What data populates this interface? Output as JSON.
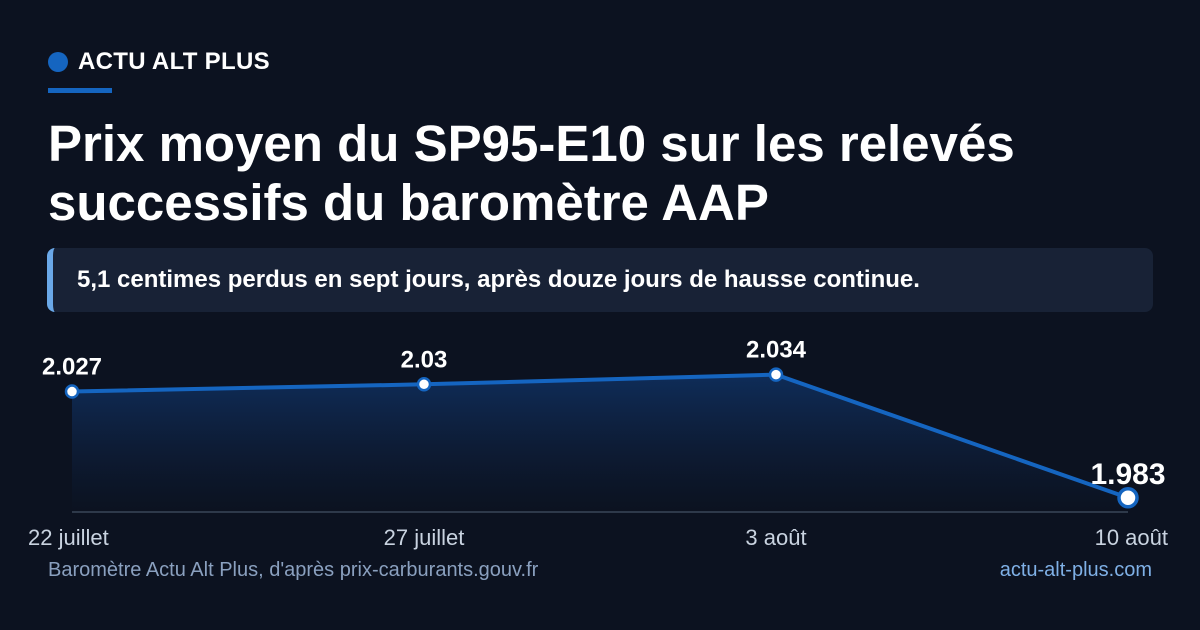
{
  "brand": {
    "name": "ACTU ALT PLUS"
  },
  "title": "Prix moyen du SP95-E10 sur les relevés successifs du baromètre AAP",
  "subtitle": "5,1 centimes perdus en sept jours, après douze jours de hausse continue.",
  "footer": {
    "source": "Baromètre Actu Alt Plus, d'après prix-carburants.gouv.fr",
    "site": "actu-alt-plus.com"
  },
  "colors": {
    "accent": "#1565c0",
    "background": "#0c1220",
    "subtitle_bar": "#6aa8e8"
  },
  "chart_data": {
    "type": "area",
    "title": "",
    "xlabel": "",
    "ylabel": "",
    "categories": [
      "22 juillet",
      "27 juillet",
      "3 août",
      "10 août"
    ],
    "values": [
      2.027,
      2.03,
      2.034,
      1.983
    ],
    "value_labels": [
      "2.027",
      "2.03",
      "2.034",
      "1.983"
    ],
    "ylim": [
      1.98,
      2.038
    ],
    "grid": false,
    "legend": "none",
    "highlight_last": true
  }
}
